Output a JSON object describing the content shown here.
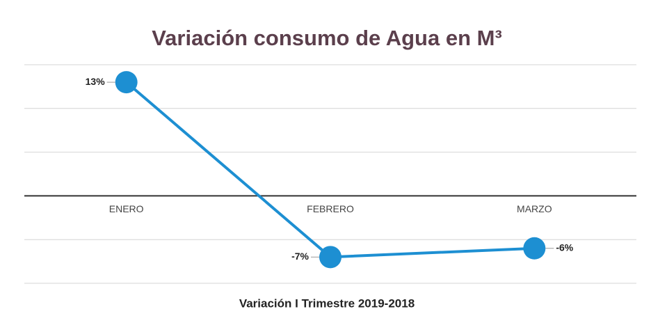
{
  "chart_data": {
    "type": "line",
    "title": "Variación consumo de Agua en M³",
    "x_label": "Variación I Trimestre 2019-2018",
    "categories": [
      "ENERO",
      "FEBRERO",
      "MARZO"
    ],
    "series": [
      {
        "name": "Variación",
        "color": "#1d8fd2",
        "values": [
          13,
          -7,
          -6
        ],
        "value_labels": [
          "13%",
          "-7%",
          "-6%"
        ]
      }
    ],
    "ylim": [
      -10,
      15
    ],
    "yticks": [
      -10,
      -5,
      0,
      5,
      10,
      15
    ],
    "grid": true,
    "legend": false
  }
}
